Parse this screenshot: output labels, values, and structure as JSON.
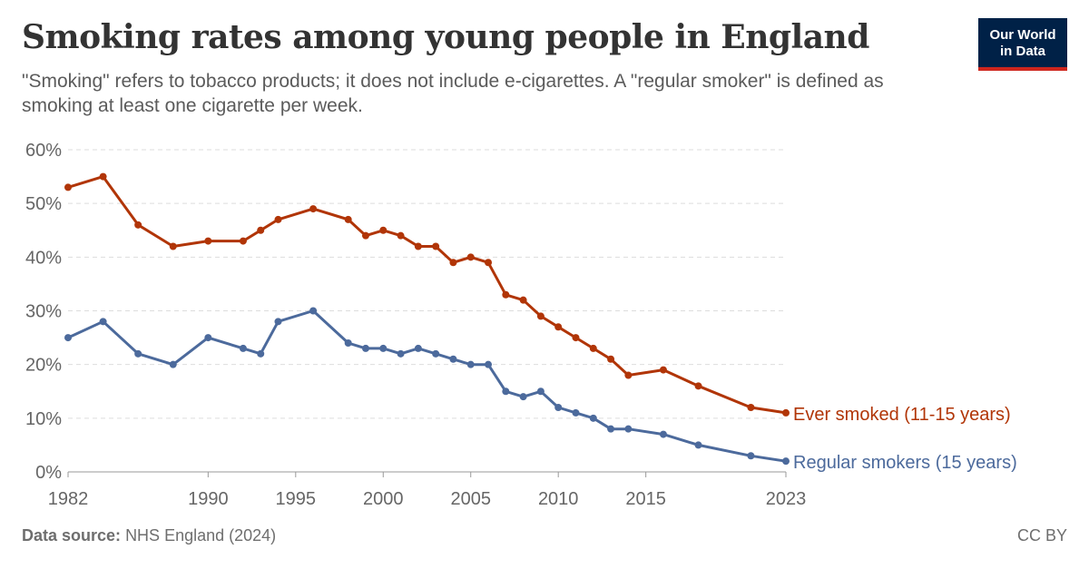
{
  "header": {
    "title": "Smoking rates among young people in England",
    "subtitle": "\"Smoking\" refers to tobacco products; it does not include e-cigarettes. A \"regular smoker\" is defined as smoking at least one cigarette per week.",
    "logo_line1": "Our World",
    "logo_line2": "in Data"
  },
  "footer": {
    "source_label": "Data source:",
    "source_value": "NHS England (2024)",
    "license": "CC BY"
  },
  "chart_data": {
    "type": "line",
    "title": "Smoking rates among young people in England",
    "xlim": [
      1982,
      2023
    ],
    "ylim": [
      0,
      60
    ],
    "x_ticks": [
      1982,
      1990,
      1995,
      2000,
      2005,
      2010,
      2015,
      2023
    ],
    "y_ticks": [
      0,
      10,
      20,
      30,
      40,
      50,
      60
    ],
    "y_tick_labels": [
      "0%",
      "10%",
      "20%",
      "30%",
      "40%",
      "50%",
      "60%"
    ],
    "grid": "horizontal-dashed",
    "legend": "inline-right",
    "series": [
      {
        "name": "Ever smoked (11-15 years)",
        "color": "#b13507",
        "points": [
          [
            1982,
            53
          ],
          [
            1984,
            55
          ],
          [
            1986,
            46
          ],
          [
            1988,
            42
          ],
          [
            1990,
            43
          ],
          [
            1992,
            43
          ],
          [
            1993,
            45
          ],
          [
            1994,
            47
          ],
          [
            1996,
            49
          ],
          [
            1998,
            47
          ],
          [
            1999,
            44
          ],
          [
            2000,
            45
          ],
          [
            2001,
            44
          ],
          [
            2002,
            42
          ],
          [
            2003,
            42
          ],
          [
            2004,
            39
          ],
          [
            2005,
            40
          ],
          [
            2006,
            39
          ],
          [
            2007,
            33
          ],
          [
            2008,
            32
          ],
          [
            2009,
            29
          ],
          [
            2010,
            27
          ],
          [
            2011,
            25
          ],
          [
            2012,
            23
          ],
          [
            2013,
            21
          ],
          [
            2014,
            18
          ],
          [
            2016,
            19
          ],
          [
            2018,
            16
          ],
          [
            2021,
            12
          ],
          [
            2023,
            11
          ]
        ]
      },
      {
        "name": "Regular smokers (15 years)",
        "color": "#4c6a9c",
        "points": [
          [
            1982,
            25
          ],
          [
            1984,
            28
          ],
          [
            1986,
            22
          ],
          [
            1988,
            20
          ],
          [
            1990,
            25
          ],
          [
            1992,
            23
          ],
          [
            1993,
            22
          ],
          [
            1994,
            28
          ],
          [
            1996,
            30
          ],
          [
            1998,
            24
          ],
          [
            1999,
            23
          ],
          [
            2000,
            23
          ],
          [
            2001,
            22
          ],
          [
            2002,
            23
          ],
          [
            2003,
            22
          ],
          [
            2004,
            21
          ],
          [
            2005,
            20
          ],
          [
            2006,
            20
          ],
          [
            2007,
            15
          ],
          [
            2008,
            14
          ],
          [
            2009,
            15
          ],
          [
            2010,
            12
          ],
          [
            2011,
            11
          ],
          [
            2012,
            10
          ],
          [
            2013,
            8
          ],
          [
            2014,
            8
          ],
          [
            2016,
            7
          ],
          [
            2018,
            5
          ],
          [
            2021,
            3
          ],
          [
            2023,
            2
          ]
        ]
      }
    ]
  }
}
